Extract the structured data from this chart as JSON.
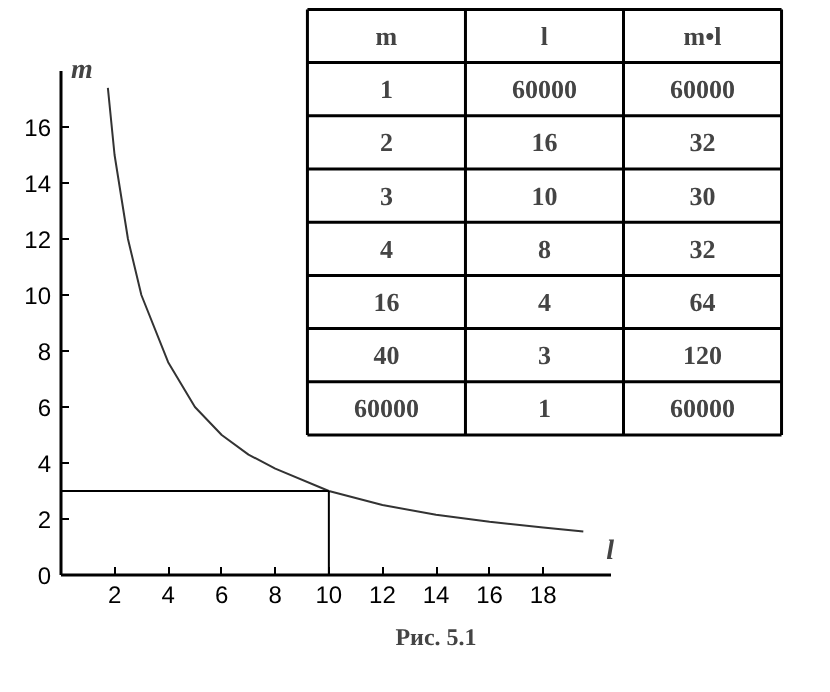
{
  "chart_data": {
    "type": "line",
    "title": "Рис. 5.1",
    "xlabel": "l",
    "ylabel": "m",
    "x": [
      1.75,
      2,
      2.5,
      3,
      4,
      5,
      6,
      7,
      8,
      10,
      12,
      14,
      16,
      18,
      19.5
    ],
    "series": [
      {
        "color": "#333333",
        "values": [
          17.4,
          15,
          12,
          10,
          7.6,
          6,
          5,
          4.3,
          3.8,
          3,
          2.5,
          2.15,
          1.9,
          1.7,
          1.55
        ]
      }
    ],
    "xlim": [
      0,
      20.5
    ],
    "ylim": [
      0,
      18
    ],
    "xticks": [
      2,
      4,
      6,
      8,
      10,
      12,
      14,
      16,
      18
    ],
    "yticks": [
      0,
      2,
      4,
      6,
      8,
      10,
      12,
      14,
      16
    ],
    "grid": false,
    "marker": "none",
    "line_style": "solid",
    "ref_lines": [
      {
        "axis": "y",
        "value": 3,
        "label": null,
        "color": "#000000"
      },
      {
        "axis": "x",
        "value": 10,
        "label": null,
        "color": "#000000"
      }
    ],
    "annotations": [
      "m",
      "l",
      "m•l",
      "1",
      "60000",
      "60000",
      "2",
      "16",
      "32",
      "3",
      "10",
      "30",
      "4",
      "8",
      "32",
      "16",
      "4",
      "64",
      "40",
      "3",
      "120",
      "60000",
      "1",
      "60000"
    ]
  }
}
